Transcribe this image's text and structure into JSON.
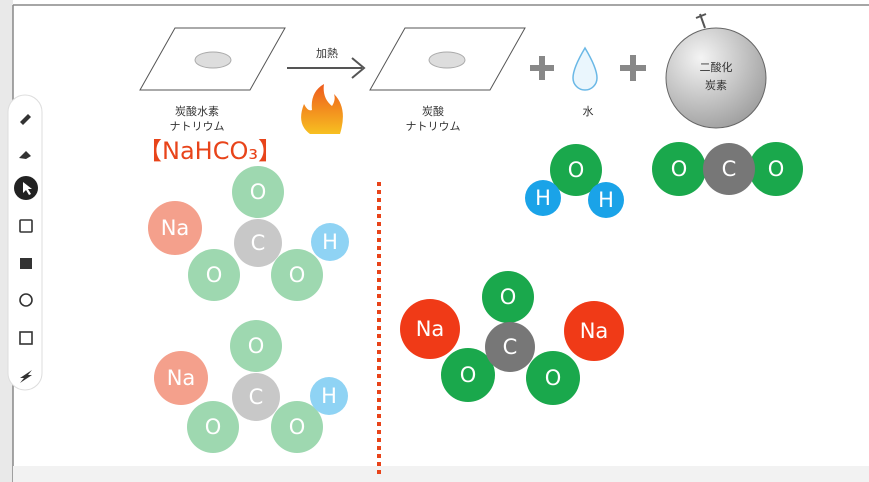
{
  "reaction": {
    "reactant": {
      "lines": [
        "炭酸水素",
        "ナトリウム"
      ]
    },
    "arrow_label": "加熱",
    "products": [
      {
        "lines": [
          "炭酸",
          "ナトリウム"
        ]
      },
      {
        "lines": [
          "水"
        ]
      },
      {
        "lines": [
          "二酸化",
          "炭素"
        ]
      }
    ]
  },
  "formula": "【NaHCO₃】",
  "molecules": [
    {
      "atoms": [
        "Na",
        "O",
        "O",
        "O",
        "C",
        "H"
      ]
    },
    {
      "atoms": [
        "Na",
        "O",
        "O",
        "O",
        "C",
        "H"
      ]
    },
    {
      "atoms": [
        "O",
        "H",
        "H"
      ]
    },
    {
      "atoms": [
        "O",
        "O",
        "C"
      ]
    },
    {
      "atoms": [
        "Na",
        "Na",
        "O",
        "O",
        "O",
        "C"
      ]
    }
  ]
}
